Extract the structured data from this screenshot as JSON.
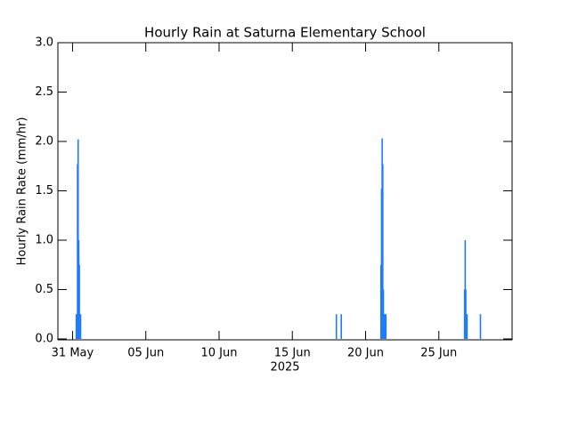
{
  "chart_data": {
    "type": "bar",
    "title": "Hourly Rain at Saturna Elementary School",
    "y_label": "Hourly Rain Rate (mm/hr)",
    "x_label": "2025",
    "color": "#1e7bff",
    "x": [
      "2025-05-31T05:00",
      "2025-05-31T06:00",
      "2025-05-31T07:00",
      "2025-05-31T08:00",
      "2025-05-31T09:00",
      "2025-05-31T10:00",
      "2025-05-31T11:00",
      "2025-05-31T12:00",
      "2025-06-17T23:00",
      "2025-06-18T07:00",
      "2025-06-21T00:00",
      "2025-06-21T01:00",
      "2025-06-21T02:00",
      "2025-06-21T03:00",
      "2025-06-21T04:00",
      "2025-06-21T05:00",
      "2025-06-21T06:00",
      "2025-06-21T07:00",
      "2025-06-21T08:00",
      "2025-06-26T17:00",
      "2025-06-26T18:00",
      "2025-06-26T19:00",
      "2025-06-26T20:00",
      "2025-06-26T21:00",
      "2025-06-27T19:00"
    ],
    "values": [
      0.25,
      0.25,
      1.77,
      2.02,
      1.0,
      0.75,
      0.25,
      0.25,
      0.25,
      0.25,
      0.75,
      1.52,
      2.03,
      1.77,
      0.5,
      0.25,
      0.25,
      0.25,
      0.25,
      0.5,
      1.0,
      0.5,
      0.25,
      0.25,
      0.25
    ],
    "xlim": [
      "2025-05-30",
      "2025-06-30"
    ],
    "xticks": [
      {
        "value": "2025-05-31",
        "label": "31 May"
      },
      {
        "value": "2025-06-05",
        "label": "05 Jun"
      },
      {
        "value": "2025-06-10",
        "label": "10 Jun"
      },
      {
        "value": "2025-06-15",
        "label": "15 Jun"
      },
      {
        "value": "2025-06-20",
        "label": "20 Jun"
      },
      {
        "value": "2025-06-25",
        "label": "25 Jun"
      }
    ],
    "ylim": [
      0,
      3
    ],
    "yticks": [
      {
        "value": 0,
        "label": "0.0"
      },
      {
        "value": 0.5,
        "label": "0.5"
      },
      {
        "value": 1,
        "label": "1.0"
      },
      {
        "value": 1.5,
        "label": "1.5"
      },
      {
        "value": 2,
        "label": "2.0"
      },
      {
        "value": 2.5,
        "label": "2.5"
      },
      {
        "value": 3,
        "label": "3.0"
      }
    ]
  }
}
